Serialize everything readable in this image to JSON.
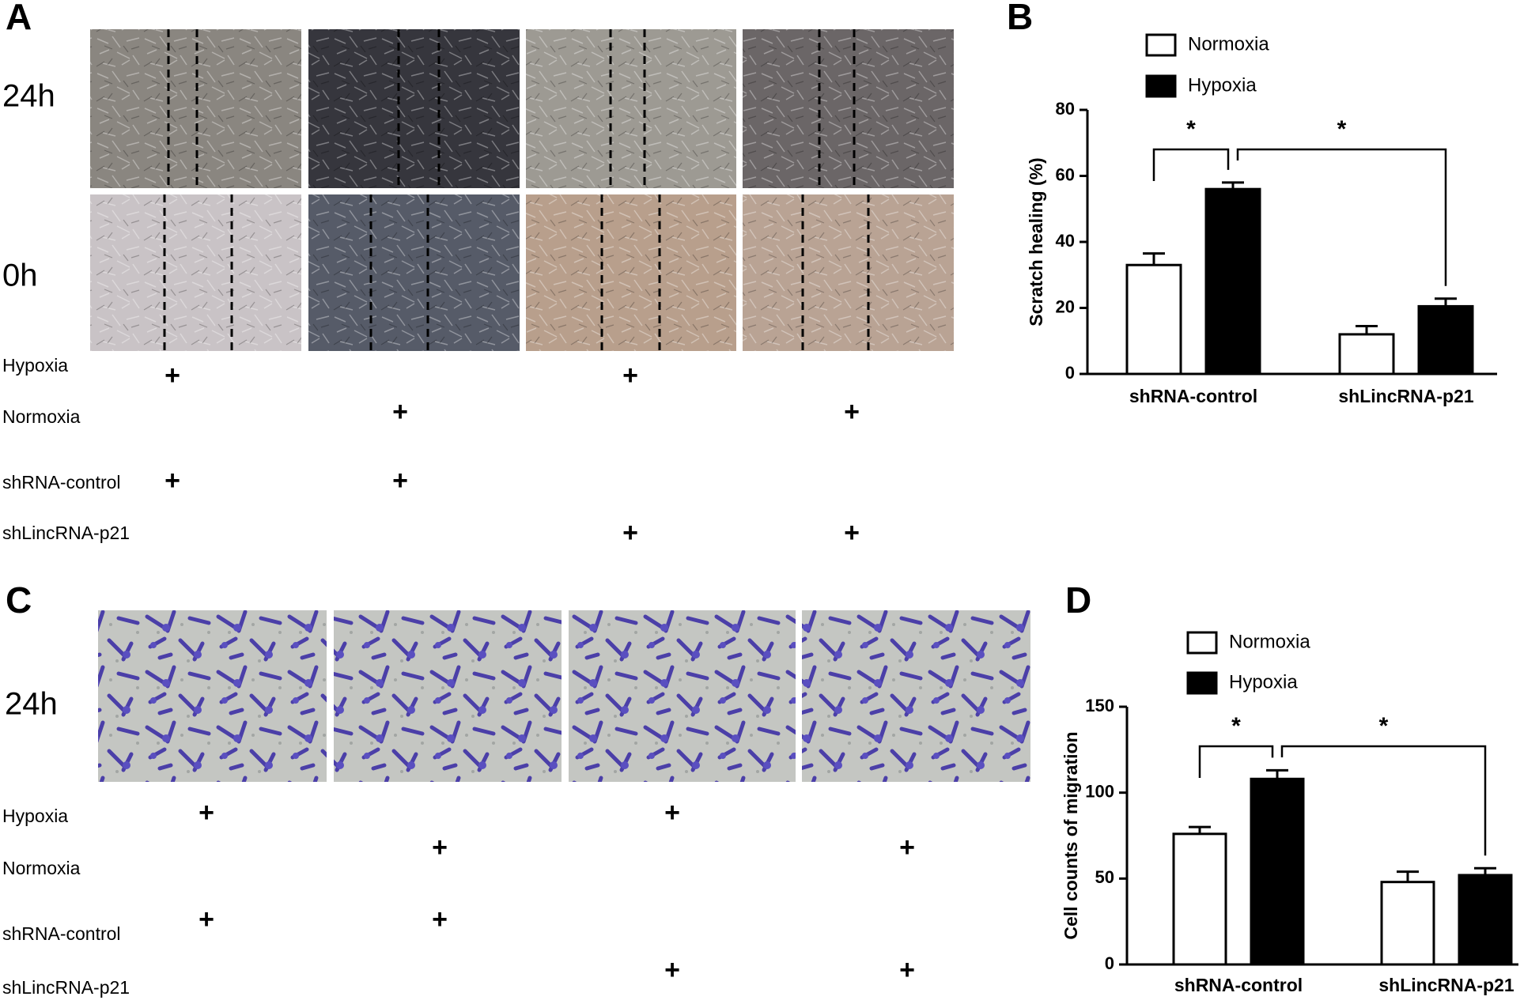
{
  "panel_labels": [
    "A",
    "B",
    "C",
    "D"
  ],
  "scratch_assay": {
    "time_labels": [
      "24h",
      "0h"
    ],
    "conditions": [
      {
        "label": "Hypoxia",
        "cells": [
          "+",
          null,
          "+",
          null
        ]
      },
      {
        "label": "Normoxia",
        "cells": [
          null,
          "+",
          null,
          "+"
        ]
      },
      {
        "label": "shRNA-control",
        "cells": [
          "+",
          "+",
          null,
          null
        ]
      },
      {
        "label": "shLincRNA-p21",
        "cells": [
          null,
          null,
          "+",
          "+"
        ]
      }
    ]
  },
  "transwell_assay": {
    "time_labels": [
      "24h"
    ],
    "conditions": [
      {
        "label": "Hypoxia",
        "cells": [
          "+",
          null,
          "+",
          null
        ]
      },
      {
        "label": "Normoxia",
        "cells": [
          null,
          "+",
          null,
          "+"
        ]
      },
      {
        "label": "shRNA-control",
        "cells": [
          "+",
          "+",
          null,
          null
        ]
      },
      {
        "label": "shLincRNA-p21",
        "cells": [
          null,
          null,
          "+",
          "+"
        ]
      }
    ]
  },
  "chart_data": [
    {
      "type": "bar",
      "y_label": "Scratch healing (%)",
      "categories": [
        "shRNA-control",
        "shLincRNA-p21"
      ],
      "series": [
        {
          "name": "Normoxia",
          "color": "#ffffff",
          "values": [
            33,
            12
          ],
          "errors": [
            3.5,
            2.5
          ]
        },
        {
          "name": "Hypoxia",
          "color": "#000000",
          "values": [
            56,
            20.5
          ],
          "errors": [
            2,
            2.3
          ]
        }
      ],
      "ylim": [
        0,
        80
      ],
      "yticks": [
        0,
        20,
        40,
        60,
        80
      ],
      "annotations": [
        "*",
        "*"
      ]
    },
    {
      "type": "bar",
      "y_label": "Cell counts of migration",
      "categories": [
        "shRNA-control",
        "shLincRNA-p21"
      ],
      "series": [
        {
          "name": "Normoxia",
          "color": "#ffffff",
          "values": [
            76,
            48
          ],
          "errors": [
            4,
            6
          ]
        },
        {
          "name": "Hypoxia",
          "color": "#000000",
          "values": [
            108,
            52
          ],
          "errors": [
            5,
            4
          ]
        }
      ],
      "ylim": [
        0,
        150
      ],
      "yticks": [
        0,
        50,
        100,
        150
      ],
      "annotations": [
        "*",
        "*"
      ]
    }
  ]
}
